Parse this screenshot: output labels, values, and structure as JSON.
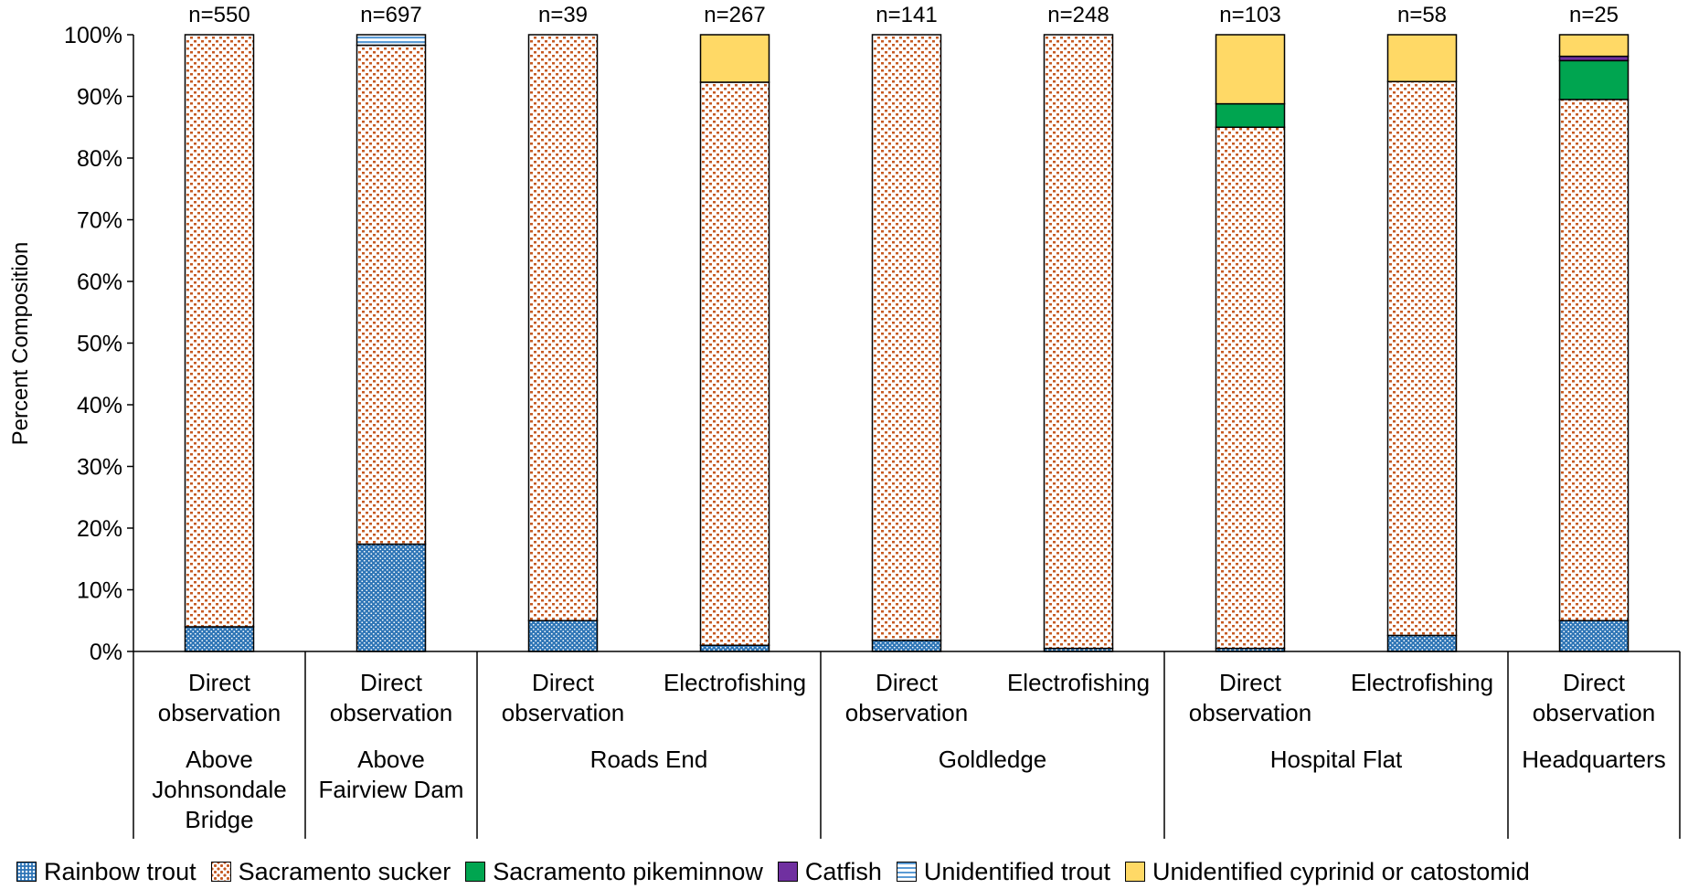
{
  "chart_data": {
    "type": "bar",
    "stacked": true,
    "ylabel": "Percent Composition",
    "ylim": [
      0,
      100
    ],
    "y_ticks": [
      "0%",
      "10%",
      "20%",
      "30%",
      "40%",
      "50%",
      "60%",
      "70%",
      "80%",
      "90%",
      "100%"
    ],
    "grid": false,
    "legend_position": "bottom",
    "bars": [
      {
        "method": "Direct observation",
        "site": "Above Johnsondale Bridge",
        "n_label": "n=550"
      },
      {
        "method": "Direct observation",
        "site": "Above Fairview Dam",
        "n_label": "n=697"
      },
      {
        "method": "Direct observation",
        "site": "Roads End",
        "n_label": "n=39"
      },
      {
        "method": "Electrofishing",
        "site": "Roads End",
        "n_label": "n=267"
      },
      {
        "method": "Direct observation",
        "site": "Goldledge",
        "n_label": "n=141"
      },
      {
        "method": "Electrofishing",
        "site": "Goldledge",
        "n_label": "n=248"
      },
      {
        "method": "Direct observation",
        "site": "Hospital Flat",
        "n_label": "n=103"
      },
      {
        "method": "Electrofishing",
        "site": "Hospital Flat",
        "n_label": "n=58"
      },
      {
        "method": "Direct observation",
        "site": "Headquarters",
        "n_label": "n=25"
      }
    ],
    "site_groups": [
      {
        "name": "Above Johnsondale Bridge",
        "lines": [
          "Above",
          "Johnsondale",
          "Bridge"
        ],
        "bar_count": 1
      },
      {
        "name": "Above Fairview Dam",
        "lines": [
          "Above",
          "Fairview Dam"
        ],
        "bar_count": 1
      },
      {
        "name": "Roads End",
        "lines": [
          "Roads End"
        ],
        "bar_count": 2
      },
      {
        "name": "Goldledge",
        "lines": [
          "Goldledge"
        ],
        "bar_count": 2
      },
      {
        "name": "Hospital Flat",
        "lines": [
          "Hospital Flat"
        ],
        "bar_count": 2
      },
      {
        "name": "Headquarters",
        "lines": [
          "Headquarters"
        ],
        "bar_count": 1
      }
    ],
    "series": [
      {
        "name": "Rainbow trout",
        "key": "rainbow",
        "values": [
          4.0,
          17.4,
          5.0,
          1.0,
          1.8,
          0.5,
          0.5,
          2.6,
          5.0
        ]
      },
      {
        "name": "Sacramento sucker",
        "key": "sucker",
        "values": [
          96.0,
          80.9,
          95.0,
          91.3,
          98.2,
          99.5,
          84.5,
          89.8,
          84.5
        ]
      },
      {
        "name": "Sacramento pikeminnow",
        "key": "pike",
        "values": [
          0,
          0,
          0,
          0,
          0,
          0,
          3.8,
          0,
          6.3
        ]
      },
      {
        "name": "Catfish",
        "key": "catfish",
        "values": [
          0,
          0,
          0,
          0,
          0,
          0,
          0,
          0,
          0.7
        ]
      },
      {
        "name": "Unidentified trout",
        "key": "untrout",
        "values": [
          0,
          1.7,
          0,
          0,
          0,
          0,
          0,
          0,
          0
        ]
      },
      {
        "name": "Unidentified cyprinid or catostomid",
        "key": "cyprinid",
        "values": [
          0,
          0,
          0,
          7.7,
          0,
          0,
          11.2,
          7.6,
          3.5
        ]
      }
    ],
    "colors": {
      "rainbow": "#2e75b6",
      "sucker": "#c65a22",
      "pike": "#00a550",
      "catfish": "#7030a0",
      "untrout": "#5b9bd5",
      "cyprinid": "#ffd966"
    }
  }
}
